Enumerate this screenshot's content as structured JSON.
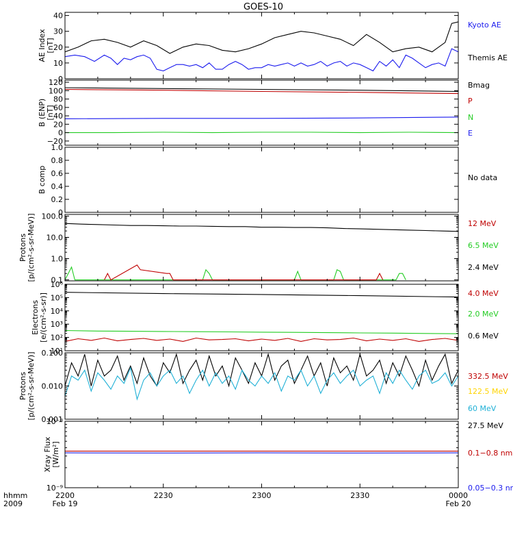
{
  "title": "GOES-10",
  "colors": {
    "black": "#000000",
    "red": "#bf0000",
    "green": "#22cc22",
    "blue": "#1a1aee",
    "cyan": "#1fb0d6",
    "yellow": "#ffd400"
  },
  "time_axis": {
    "corner_top": "hhmm",
    "corner_bottom": "2009",
    "ticks": [
      {
        "x": 0,
        "top": "2200",
        "bottom": "Feb 19"
      },
      {
        "x": 30,
        "top": "2230",
        "bottom": ""
      },
      {
        "x": 60,
        "top": "2300",
        "bottom": ""
      },
      {
        "x": 90,
        "top": "2330",
        "bottom": ""
      },
      {
        "x": 120,
        "top": "0000",
        "bottom": "Feb 20"
      }
    ],
    "xlim": [
      0,
      120
    ],
    "unit": "minutes after 2200 UT"
  },
  "chart_data": [
    {
      "type": "line",
      "ylabel_lines": [
        "AE Index",
        "[nT]"
      ],
      "yscale": "linear",
      "ylim": [
        0,
        42
      ],
      "yticks": [
        0,
        10,
        20,
        30,
        40
      ],
      "yticklabels": [
        "0",
        "10",
        "20",
        "30",
        "40"
      ],
      "legend": [
        {
          "text": "Kyoto AE",
          "color": "#1a1aee"
        },
        {
          "text": "Themis AE",
          "color": "#000000"
        }
      ],
      "series": [
        {
          "name": "Themis AE",
          "color": "#000000",
          "x": [
            0,
            4,
            8,
            12,
            16,
            20,
            24,
            28,
            32,
            36,
            40,
            44,
            48,
            52,
            56,
            60,
            64,
            68,
            72,
            76,
            80,
            84,
            88,
            92,
            96,
            100,
            104,
            108,
            112,
            116,
            118,
            120
          ],
          "values": [
            17,
            20,
            24,
            25,
            23,
            20,
            24,
            21,
            16,
            20,
            22,
            21,
            18,
            17,
            19,
            22,
            26,
            28,
            30,
            29,
            27,
            25,
            21,
            28,
            23,
            17,
            19,
            20,
            17,
            23,
            35,
            36
          ]
        },
        {
          "name": "Kyoto AE",
          "color": "#1a1aee",
          "x": [
            0,
            3,
            6,
            9,
            12,
            14,
            16,
            18,
            20,
            22,
            24,
            26,
            28,
            30,
            32,
            34,
            36,
            38,
            40,
            42,
            44,
            46,
            48,
            50,
            52,
            54,
            56,
            58,
            60,
            62,
            64,
            66,
            68,
            70,
            72,
            74,
            76,
            78,
            80,
            82,
            84,
            86,
            88,
            90,
            92,
            94,
            96,
            98,
            100,
            102,
            104,
            106,
            108,
            110,
            112,
            114,
            116,
            118,
            120
          ],
          "values": [
            14,
            15,
            14,
            11,
            15,
            13,
            9,
            13,
            12,
            14,
            15,
            13,
            6,
            5,
            7,
            9,
            9,
            8,
            9,
            7,
            10,
            6,
            6,
            9,
            11,
            9,
            6,
            7,
            7,
            9,
            8,
            9,
            10,
            8,
            10,
            8,
            9,
            11,
            8,
            10,
            11,
            8,
            10,
            9,
            7,
            5,
            11,
            8,
            12,
            7,
            15,
            13,
            10,
            7,
            9,
            10,
            8,
            19,
            17
          ]
        }
      ]
    },
    {
      "type": "line",
      "ylabel_lines": [
        "B (ENP)",
        "[nT]"
      ],
      "yscale": "linear",
      "ylim": [
        -30,
        125
      ],
      "yticks": [
        -20,
        0,
        20,
        40,
        60,
        80,
        100,
        120
      ],
      "yticklabels": [
        "−20",
        "0",
        "20",
        "40",
        "60",
        "80",
        "100",
        "120"
      ],
      "legend": [
        {
          "text": "Bmag",
          "color": "#000000"
        },
        {
          "text": "P",
          "color": "#bf0000"
        },
        {
          "text": "N",
          "color": "#22cc22"
        },
        {
          "text": "E",
          "color": "#1a1aee"
        }
      ],
      "series": [
        {
          "name": "Bmag",
          "color": "#000000",
          "x": [
            0,
            30,
            60,
            90,
            120
          ],
          "values": [
            107,
            105,
            103,
            101,
            98
          ]
        },
        {
          "name": "P",
          "color": "#bf0000",
          "x": [
            0,
            30,
            60,
            90,
            120
          ],
          "values": [
            103,
            101,
            98,
            96,
            93
          ]
        },
        {
          "name": "E",
          "color": "#1a1aee",
          "x": [
            0,
            30,
            60,
            90,
            120
          ],
          "values": [
            33,
            34,
            34,
            35,
            37
          ]
        },
        {
          "name": "N",
          "color": "#22cc22",
          "x": [
            0,
            15,
            30,
            45,
            60,
            75,
            90,
            105,
            120
          ],
          "values": [
            0,
            0,
            1,
            0,
            1,
            1,
            0,
            1,
            0
          ]
        }
      ]
    },
    {
      "type": "line",
      "ylabel_lines": [
        "B comp"
      ],
      "yscale": "linear",
      "ylim": [
        0,
        1
      ],
      "yticks": [
        0,
        0.2,
        0.4,
        0.6,
        0.8,
        1.0
      ],
      "yticklabels": [
        "0",
        "0.2",
        "0.4",
        "0.6",
        "0.8",
        "1.0"
      ],
      "legend": [
        {
          "text": "No data",
          "color": "#000000"
        }
      ],
      "series": []
    },
    {
      "type": "line",
      "ylabel_lines": [
        "Protons",
        "[p/(cm²-s-sr-MeV)]"
      ],
      "yscale": "log",
      "ylim": [
        0.09,
        120
      ],
      "yticks": [
        0.1,
        1,
        10,
        100
      ],
      "yticklabels": [
        "0.1",
        "1.0",
        "10.0",
        "100.0"
      ],
      "legend": [
        {
          "text": "12 MeV",
          "color": "#bf0000"
        },
        {
          "text": "6.5 MeV",
          "color": "#22cc22"
        },
        {
          "text": "2.4 MeV",
          "color": "#000000"
        }
      ],
      "series": [
        {
          "name": "2.4 MeV",
          "color": "#000000",
          "x": [
            0,
            5,
            10,
            15,
            20,
            25,
            30,
            35,
            40,
            45,
            50,
            55,
            60,
            65,
            70,
            75,
            80,
            85,
            90,
            95,
            100,
            105,
            110,
            115,
            120
          ],
          "values": [
            45,
            42,
            40,
            38,
            36,
            36,
            35,
            34,
            34,
            33,
            32,
            32,
            30,
            30,
            29,
            29,
            28,
            26,
            25,
            24,
            23,
            22,
            21,
            20,
            19
          ]
        },
        {
          "name": "6.5 MeV",
          "color": "#22cc22",
          "x": [
            0,
            2,
            3,
            4,
            5,
            42,
            43,
            44,
            45,
            70,
            71,
            72,
            73,
            74,
            82,
            83,
            84,
            85,
            86,
            101,
            102,
            103,
            104
          ],
          "values": [
            0.1,
            0.4,
            0.1,
            0.1,
            0.1,
            0.1,
            0.3,
            0.2,
            0.1,
            0.1,
            0.25,
            0.1,
            0.1,
            0.1,
            0.1,
            0.3,
            0.25,
            0.1,
            0.1,
            0.1,
            0.2,
            0.2,
            0.1
          ]
        },
        {
          "name": "12 MeV",
          "color": "#bf0000",
          "x": [
            12,
            13,
            14,
            22,
            23,
            31,
            32,
            33,
            95,
            96,
            97
          ],
          "values": [
            0.1,
            0.2,
            0.1,
            0.5,
            0.3,
            0.2,
            0.2,
            0.1,
            0.1,
            0.2,
            0.1
          ]
        }
      ]
    },
    {
      "type": "line",
      "ylabel_lines": [
        "Electrons",
        "[e/(cm²-s-sr)]"
      ],
      "yscale": "log",
      "ylim": [
        10,
        1000000
      ],
      "yticks": [
        10,
        100,
        1000,
        10000,
        100000,
        1000000
      ],
      "yticklabels": [
        "10¹",
        "10²",
        "10³",
        "10⁴",
        "10⁵",
        "10⁶"
      ],
      "legend": [
        {
          "text": "4.0 MeV",
          "color": "#bf0000"
        },
        {
          "text": "2.0 MeV",
          "color": "#22cc22"
        },
        {
          "text": "0.6 MeV",
          "color": "#000000"
        }
      ],
      "series": [
        {
          "name": "0.6 MeV",
          "color": "#000000",
          "x": [
            0,
            30,
            60,
            90,
            120
          ],
          "values": [
            250000,
            200000,
            170000,
            140000,
            110000
          ]
        },
        {
          "name": "2.0 MeV",
          "color": "#22cc22",
          "x": [
            0,
            10,
            20,
            30,
            40,
            50,
            60,
            70,
            80,
            90,
            100,
            110,
            120
          ],
          "values": [
            330,
            300,
            290,
            280,
            270,
            260,
            250,
            240,
            230,
            220,
            210,
            200,
            190
          ]
        },
        {
          "name": "4.0 MeV",
          "color": "#bf0000",
          "x": [
            0,
            4,
            8,
            12,
            16,
            20,
            24,
            28,
            32,
            36,
            40,
            44,
            48,
            52,
            56,
            60,
            64,
            68,
            72,
            76,
            80,
            84,
            88,
            92,
            96,
            100,
            104,
            108,
            112,
            116,
            120
          ],
          "values": [
            50,
            80,
            60,
            90,
            55,
            70,
            85,
            60,
            75,
            50,
            90,
            65,
            70,
            80,
            55,
            75,
            60,
            85,
            50,
            80,
            65,
            70,
            90,
            55,
            75,
            60,
            80,
            50,
            70,
            85,
            60
          ]
        }
      ]
    },
    {
      "type": "line",
      "ylabel_lines": [
        "Protons",
        "[p/(cm²-s-sr-MeV)]"
      ],
      "yscale": "log",
      "ylim": [
        0.001,
        0.1
      ],
      "yticks": [
        0.001,
        0.01,
        0.1
      ],
      "yticklabels": [
        "0.001",
        "0.010",
        "0.100"
      ],
      "legend": [
        {
          "text": "332.5 MeV",
          "color": "#bf0000"
        },
        {
          "text": "122.5 MeV",
          "color": "#ffd400"
        },
        {
          "text": "60 MeV",
          "color": "#1fb0d6"
        },
        {
          "text": "27.5 MeV",
          "color": "#000000"
        }
      ],
      "series": [
        {
          "name": "27.5 MeV",
          "color": "#000000",
          "x": [
            0,
            2,
            4,
            6,
            8,
            10,
            12,
            14,
            16,
            18,
            20,
            22,
            24,
            26,
            28,
            30,
            32,
            34,
            36,
            38,
            40,
            42,
            44,
            46,
            48,
            50,
            52,
            54,
            56,
            58,
            60,
            62,
            64,
            66,
            68,
            70,
            72,
            74,
            76,
            78,
            80,
            82,
            84,
            86,
            88,
            90,
            92,
            94,
            96,
            98,
            100,
            102,
            104,
            106,
            108,
            110,
            112,
            114,
            116,
            118,
            120
          ],
          "values": [
            0.01,
            0.05,
            0.02,
            0.09,
            0.01,
            0.06,
            0.02,
            0.03,
            0.08,
            0.015,
            0.04,
            0.012,
            0.07,
            0.02,
            0.01,
            0.05,
            0.025,
            0.09,
            0.012,
            0.03,
            0.06,
            0.015,
            0.08,
            0.02,
            0.04,
            0.01,
            0.07,
            0.03,
            0.012,
            0.05,
            0.02,
            0.09,
            0.015,
            0.04,
            0.06,
            0.012,
            0.03,
            0.08,
            0.02,
            0.05,
            0.01,
            0.07,
            0.025,
            0.04,
            0.015,
            0.09,
            0.02,
            0.03,
            0.06,
            0.012,
            0.05,
            0.02,
            0.08,
            0.03,
            0.01,
            0.06,
            0.015,
            0.04,
            0.09,
            0.012,
            0.03
          ]
        },
        {
          "name": "60 MeV",
          "color": "#1fb0d6",
          "x": [
            0,
            2,
            4,
            6,
            8,
            10,
            12,
            14,
            16,
            18,
            20,
            22,
            24,
            26,
            28,
            30,
            32,
            34,
            36,
            38,
            40,
            42,
            44,
            46,
            48,
            50,
            52,
            54,
            56,
            58,
            60,
            62,
            64,
            66,
            68,
            70,
            72,
            74,
            76,
            78,
            80,
            82,
            84,
            86,
            88,
            90,
            92,
            94,
            96,
            98,
            100,
            102,
            104,
            106,
            108,
            110,
            112,
            114,
            116,
            118,
            120
          ],
          "values": [
            0.005,
            0.02,
            0.015,
            0.03,
            0.007,
            0.025,
            0.015,
            0.008,
            0.02,
            0.012,
            0.035,
            0.004,
            0.015,
            0.025,
            0.01,
            0.02,
            0.03,
            0.012,
            0.02,
            0.006,
            0.015,
            0.03,
            0.01,
            0.025,
            0.012,
            0.02,
            0.008,
            0.03,
            0.015,
            0.01,
            0.02,
            0.012,
            0.025,
            0.007,
            0.02,
            0.015,
            0.03,
            0.01,
            0.02,
            0.006,
            0.015,
            0.025,
            0.012,
            0.02,
            0.03,
            0.01,
            0.015,
            0.02,
            0.006,
            0.025,
            0.012,
            0.03,
            0.015,
            0.008,
            0.02,
            0.03,
            0.012,
            0.015,
            0.025,
            0.01,
            0.02
          ]
        }
      ]
    },
    {
      "type": "line",
      "ylabel_lines": [
        "Xray Flux",
        "[W/m²]"
      ],
      "yscale": "log",
      "ylim": [
        1e-09,
        1e-08
      ],
      "yticks": [
        1e-09,
        1e-08
      ],
      "yticklabels": [
        "10⁻⁹",
        "10⁻⁸"
      ],
      "legend": [
        {
          "text": "0.1−0.8 nm",
          "color": "#bf0000"
        },
        {
          "text": "0.05−0.3 nm",
          "color": "#1a1aee"
        }
      ],
      "series": [
        {
          "name": "0.1−0.8 nm",
          "color": "#bf0000",
          "x": [
            0,
            120
          ],
          "values": [
            3.55e-09,
            3.55e-09
          ]
        },
        {
          "name": "0.05−0.3 nm",
          "color": "#1a1aee",
          "x": [
            0,
            30,
            60,
            90,
            120
          ],
          "values": [
            3.35e-09,
            3.33e-09,
            3.35e-09,
            3.33e-09,
            3.35e-09
          ]
        }
      ]
    }
  ]
}
